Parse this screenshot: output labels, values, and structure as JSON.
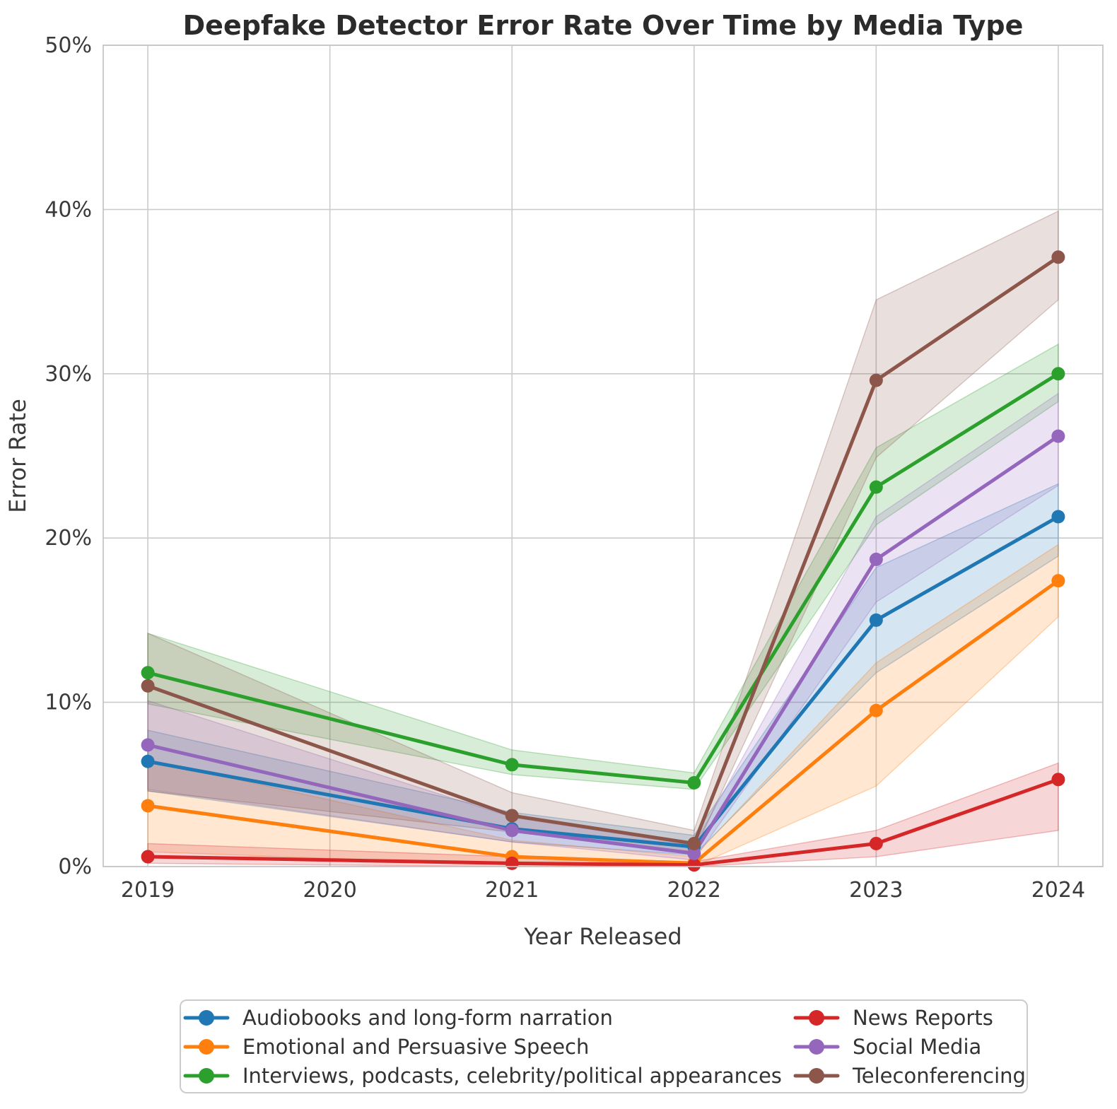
{
  "chart_data": {
    "type": "line",
    "title": "Deepfake Detector Error Rate Over Time by Media Type",
    "xlabel": "Year Released",
    "ylabel": "Error Rate",
    "x": [
      2019,
      2021,
      2022,
      2023,
      2024
    ],
    "xlim": [
      2018.755,
      2024.245
    ],
    "ylim": [
      0,
      50
    ],
    "xticks": [
      2019,
      2020,
      2021,
      2022,
      2023,
      2024
    ],
    "xtick_labels": [
      "2019",
      "2020",
      "2021",
      "2022",
      "2023",
      "2024"
    ],
    "yticks": [
      0,
      10,
      20,
      30,
      40,
      50
    ],
    "ytick_labels": [
      "0%",
      "10%",
      "20%",
      "30%",
      "40%",
      "50%"
    ],
    "grid": true,
    "band_style": "confidence-interval, fill-opacity ~0.2",
    "legend_position": "bottom, two columns",
    "series": [
      {
        "name": "Audiobooks and long-form narration",
        "slug": "audiobooks",
        "color": "#1f77b4",
        "values": [
          6.4,
          2.3,
          1.2,
          15.0,
          21.3
        ],
        "lower": [
          4.6,
          1.5,
          0.7,
          11.8,
          18.9
        ],
        "upper": [
          8.3,
          3.3,
          1.9,
          18.2,
          23.3
        ]
      },
      {
        "name": "Emotional and Persuasive Speech",
        "slug": "emotional-speech",
        "color": "#ff7f0e",
        "values": [
          3.7,
          0.6,
          0.2,
          9.5,
          17.4
        ],
        "lower": [
          0.9,
          0.1,
          0.0,
          4.9,
          15.2
        ],
        "upper": [
          6.5,
          1.6,
          0.6,
          12.4,
          19.6
        ]
      },
      {
        "name": "Interviews, podcasts, celebrity/political appearances",
        "slug": "interviews",
        "color": "#2ca02c",
        "values": [
          11.8,
          6.2,
          5.1,
          23.1,
          30.0
        ],
        "lower": [
          9.9,
          5.6,
          4.7,
          20.8,
          28.3
        ],
        "upper": [
          14.2,
          7.1,
          5.7,
          25.5,
          31.8
        ]
      },
      {
        "name": "News Reports",
        "slug": "news-reports",
        "color": "#d62728",
        "values": [
          0.6,
          0.2,
          0.1,
          1.4,
          5.3
        ],
        "lower": [
          0.2,
          0.0,
          0.0,
          0.6,
          2.2
        ],
        "upper": [
          1.4,
          0.6,
          0.3,
          2.2,
          6.3
        ]
      },
      {
        "name": "Social Media",
        "slug": "social-media",
        "color": "#9467bd",
        "values": [
          7.4,
          2.2,
          0.8,
          18.7,
          26.2
        ],
        "lower": [
          4.7,
          1.5,
          0.4,
          16.1,
          23.2
        ],
        "upper": [
          10.1,
          3.0,
          1.3,
          21.3,
          28.8
        ]
      },
      {
        "name": "Teleconferencing",
        "slug": "teleconferencing",
        "color": "#8c564b",
        "values": [
          11.0,
          3.1,
          1.4,
          29.6,
          37.1
        ],
        "lower": [
          4.6,
          2.1,
          0.9,
          24.9,
          34.5
        ],
        "upper": [
          14.2,
          4.5,
          2.2,
          34.5,
          39.9
        ]
      }
    ],
    "legend_columns": [
      [
        "Audiobooks and long-form narration",
        "Emotional and Persuasive Speech",
        "Interviews, podcasts, celebrity/political appearances"
      ],
      [
        "News Reports",
        "Social Media",
        "Teleconferencing"
      ]
    ]
  },
  "style": {
    "grid_color": "#cbcbcb",
    "spine_color": "#c6c6c6",
    "background": "#ffffff",
    "text_color": "#262626"
  }
}
